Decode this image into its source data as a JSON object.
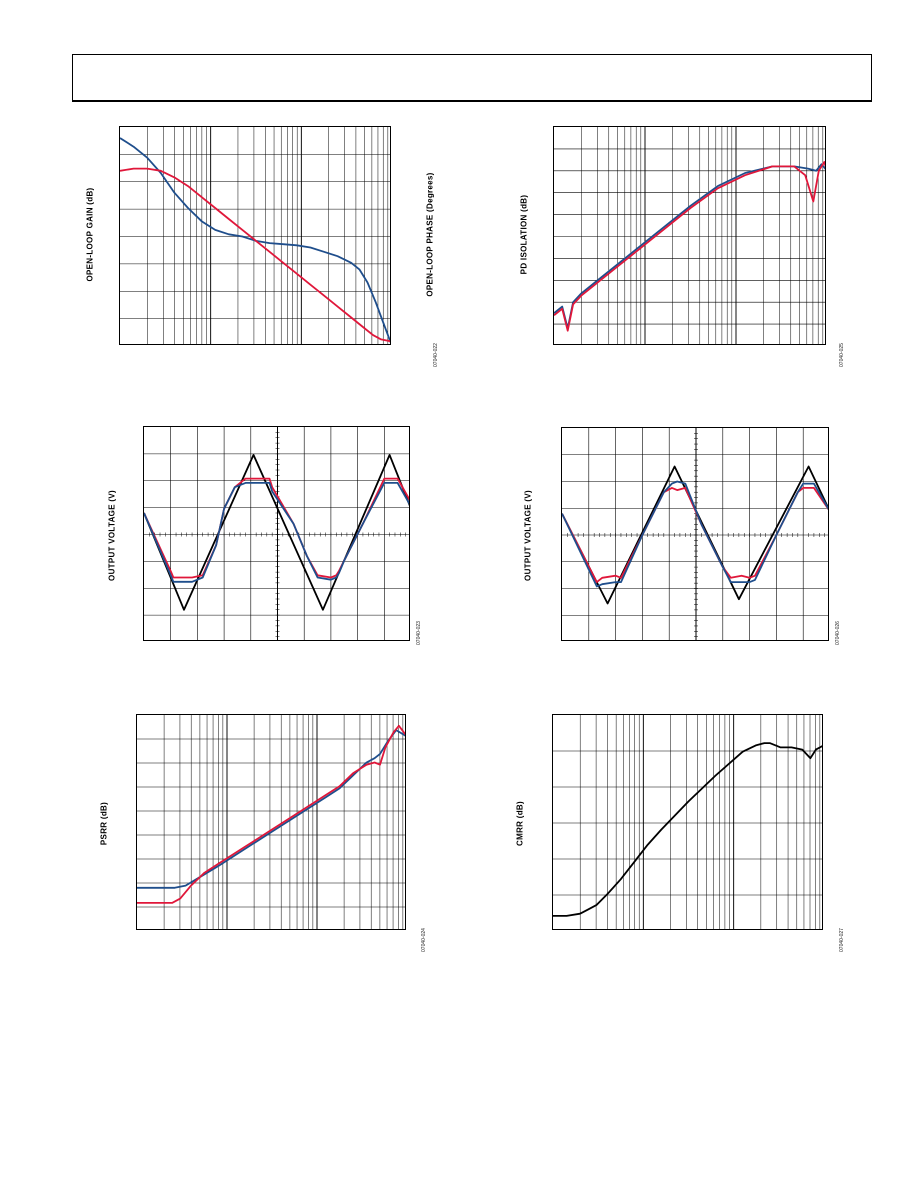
{
  "colors": {
    "blue": "#1f4e8c",
    "red": "#e0173a",
    "black": "#000000",
    "grid": "#000000"
  },
  "charts": {
    "c1": {
      "ylabel": "OPEN-LOOP GAIN (dB)",
      "y2label": "OPEN-LOOP PHASE (Degrees)",
      "fig_id": "07040-022"
    },
    "c2": {
      "ylabel": "PD ISOLATION (dB)",
      "fig_id": "07040-025"
    },
    "c3": {
      "ylabel": "OUTPUT VOLTAGE (V)",
      "fig_id": "07040-023"
    },
    "c4": {
      "ylabel": "OUTPUT VOLTAGE (V)",
      "fig_id": "07040-026"
    },
    "c5": {
      "ylabel": "PSRR (dB)",
      "fig_id": "07040-024"
    },
    "c6": {
      "ylabel": "CMRR (dB)",
      "fig_id": "07040-027"
    }
  },
  "chart_data": [
    {
      "type": "line",
      "ylabel": "OPEN-LOOP GAIN (dB)",
      "y2label": "OPEN-LOOP PHASE (Degrees)",
      "xscale": "log",
      "xlim": [
        0,
        1
      ],
      "ylim": [
        0,
        1
      ],
      "series": [
        {
          "color": "blue",
          "x": [
            0,
            0.05,
            0.1,
            0.15,
            0.2,
            0.25,
            0.3,
            0.35,
            0.4,
            0.45,
            0.5,
            0.55,
            0.6,
            0.65,
            0.7,
            0.75,
            0.8,
            0.85,
            0.88,
            0.91,
            0.94,
            0.97,
            1.0
          ],
          "y": [
            0.95,
            0.91,
            0.86,
            0.79,
            0.7,
            0.63,
            0.57,
            0.53,
            0.51,
            0.5,
            0.48,
            0.47,
            0.465,
            0.46,
            0.45,
            0.43,
            0.41,
            0.38,
            0.35,
            0.29,
            0.2,
            0.1,
            0.0
          ]
        },
        {
          "color": "red",
          "x": [
            0,
            0.05,
            0.1,
            0.15,
            0.2,
            0.25,
            0.3,
            0.35,
            0.4,
            0.45,
            0.5,
            0.55,
            0.6,
            0.65,
            0.7,
            0.75,
            0.8,
            0.85,
            0.9,
            0.93,
            0.96,
            1.0
          ],
          "y": [
            0.8,
            0.81,
            0.81,
            0.8,
            0.77,
            0.73,
            0.68,
            0.63,
            0.58,
            0.53,
            0.48,
            0.43,
            0.38,
            0.33,
            0.28,
            0.23,
            0.18,
            0.13,
            0.08,
            0.05,
            0.03,
            0.02
          ]
        }
      ]
    },
    {
      "type": "line",
      "ylabel": "PD ISOLATION (dB)",
      "xscale": "log",
      "xlim": [
        0,
        1
      ],
      "ylim": [
        0,
        1
      ],
      "series": [
        {
          "color": "blue",
          "x": [
            0,
            0.03,
            0.05,
            0.07,
            0.1,
            0.15,
            0.2,
            0.3,
            0.4,
            0.5,
            0.6,
            0.7,
            0.8,
            0.88,
            0.93,
            0.96,
            0.98,
            1.0
          ],
          "y": [
            0.15,
            0.18,
            0.08,
            0.2,
            0.24,
            0.29,
            0.34,
            0.44,
            0.54,
            0.64,
            0.73,
            0.79,
            0.82,
            0.82,
            0.81,
            0.8,
            0.83,
            0.8
          ]
        },
        {
          "color": "red",
          "x": [
            0,
            0.03,
            0.05,
            0.07,
            0.1,
            0.15,
            0.2,
            0.3,
            0.4,
            0.5,
            0.6,
            0.7,
            0.8,
            0.88,
            0.92,
            0.95,
            0.97,
            0.99,
            1.0
          ],
          "y": [
            0.14,
            0.17,
            0.07,
            0.19,
            0.23,
            0.28,
            0.33,
            0.43,
            0.53,
            0.63,
            0.72,
            0.78,
            0.82,
            0.82,
            0.78,
            0.66,
            0.8,
            0.84,
            0.8
          ]
        }
      ]
    },
    {
      "type": "line",
      "ylabel": "OUTPUT VOLTAGE (V)",
      "xlim": [
        0,
        1
      ],
      "ylim": [
        0,
        1
      ],
      "series": [
        {
          "color": "black",
          "x": [
            0,
            0.15,
            0.41,
            0.67,
            0.92,
            1.0
          ],
          "y": [
            0.6,
            0.15,
            0.87,
            0.15,
            0.87,
            0.62
          ]
        },
        {
          "color": "red",
          "x": [
            0,
            0.1,
            0.11,
            0.18,
            0.22,
            0.27,
            0.3,
            0.34,
            0.38,
            0.47,
            0.48,
            0.56,
            0.61,
            0.65,
            0.7,
            0.72,
            0.73,
            0.75,
            0.82,
            0.9,
            0.95,
            1.0
          ],
          "y": [
            0.6,
            0.33,
            0.3,
            0.3,
            0.31,
            0.45,
            0.62,
            0.72,
            0.76,
            0.76,
            0.72,
            0.55,
            0.4,
            0.31,
            0.3,
            0.31,
            0.33,
            0.38,
            0.55,
            0.76,
            0.76,
            0.65
          ]
        },
        {
          "color": "blue",
          "x": [
            0,
            0.1,
            0.11,
            0.18,
            0.22,
            0.27,
            0.3,
            0.34,
            0.38,
            0.47,
            0.48,
            0.56,
            0.61,
            0.65,
            0.7,
            0.72,
            0.73,
            0.75,
            0.82,
            0.9,
            0.95,
            1.0
          ],
          "y": [
            0.6,
            0.31,
            0.28,
            0.28,
            0.3,
            0.45,
            0.62,
            0.72,
            0.74,
            0.74,
            0.7,
            0.55,
            0.4,
            0.3,
            0.29,
            0.3,
            0.32,
            0.38,
            0.55,
            0.74,
            0.74,
            0.63
          ]
        }
      ]
    },
    {
      "type": "line",
      "ylabel": "OUTPUT VOLTAGE (V)",
      "xlim": [
        0,
        1
      ],
      "ylim": [
        0,
        1
      ],
      "series": [
        {
          "color": "black",
          "x": [
            0,
            0.17,
            0.42,
            0.66,
            0.92,
            1.0
          ],
          "y": [
            0.6,
            0.18,
            0.82,
            0.2,
            0.82,
            0.61
          ]
        },
        {
          "color": "red",
          "x": [
            0,
            0.13,
            0.15,
            0.2,
            0.22,
            0.3,
            0.38,
            0.41,
            0.43,
            0.46,
            0.52,
            0.6,
            0.63,
            0.67,
            0.7,
            0.72,
            0.8,
            0.88,
            0.9,
            0.94,
            1.0
          ],
          "y": [
            0.6,
            0.28,
            0.3,
            0.31,
            0.3,
            0.5,
            0.7,
            0.72,
            0.71,
            0.72,
            0.55,
            0.35,
            0.3,
            0.31,
            0.3,
            0.31,
            0.5,
            0.7,
            0.72,
            0.72,
            0.61
          ]
        },
        {
          "color": "blue",
          "x": [
            0,
            0.13,
            0.15,
            0.2,
            0.22,
            0.3,
            0.38,
            0.41,
            0.43,
            0.46,
            0.52,
            0.6,
            0.63,
            0.67,
            0.7,
            0.72,
            0.8,
            0.88,
            0.9,
            0.94,
            1.0
          ],
          "y": [
            0.6,
            0.26,
            0.27,
            0.28,
            0.28,
            0.5,
            0.7,
            0.74,
            0.75,
            0.74,
            0.55,
            0.35,
            0.28,
            0.28,
            0.28,
            0.29,
            0.5,
            0.7,
            0.74,
            0.74,
            0.61
          ]
        }
      ]
    },
    {
      "type": "line",
      "ylabel": "PSRR (dB)",
      "xscale": "log",
      "xlim": [
        0,
        1
      ],
      "ylim": [
        0,
        1
      ],
      "series": [
        {
          "color": "blue",
          "x": [
            0,
            0.1,
            0.14,
            0.18,
            0.22,
            0.3,
            0.4,
            0.5,
            0.6,
            0.7,
            0.75,
            0.8,
            0.85,
            0.88,
            0.9,
            0.93,
            0.96,
            1.0
          ],
          "y": [
            0.2,
            0.2,
            0.2,
            0.21,
            0.24,
            0.3,
            0.38,
            0.46,
            0.54,
            0.62,
            0.66,
            0.72,
            0.78,
            0.8,
            0.82,
            0.88,
            0.93,
            0.9
          ]
        },
        {
          "color": "red",
          "x": [
            0,
            0.1,
            0.13,
            0.16,
            0.2,
            0.25,
            0.3,
            0.4,
            0.5,
            0.6,
            0.7,
            0.75,
            0.8,
            0.85,
            0.88,
            0.9,
            0.92,
            0.95,
            0.97,
            1.0
          ],
          "y": [
            0.13,
            0.13,
            0.13,
            0.15,
            0.21,
            0.27,
            0.31,
            0.39,
            0.47,
            0.55,
            0.63,
            0.67,
            0.73,
            0.77,
            0.78,
            0.77,
            0.85,
            0.92,
            0.95,
            0.9
          ]
        }
      ]
    },
    {
      "type": "line",
      "ylabel": "CMRR (dB)",
      "xscale": "log",
      "xlim": [
        0,
        1
      ],
      "ylim": [
        0,
        1
      ],
      "series": [
        {
          "color": "black",
          "x": [
            0,
            0.05,
            0.1,
            0.13,
            0.16,
            0.2,
            0.25,
            0.3,
            0.35,
            0.4,
            0.5,
            0.6,
            0.7,
            0.75,
            0.78,
            0.8,
            0.84,
            0.88,
            0.92,
            0.95,
            0.97,
            1.0
          ],
          "y": [
            0.07,
            0.07,
            0.08,
            0.1,
            0.12,
            0.17,
            0.24,
            0.32,
            0.4,
            0.47,
            0.6,
            0.72,
            0.83,
            0.86,
            0.87,
            0.87,
            0.85,
            0.85,
            0.84,
            0.8,
            0.84,
            0.86
          ]
        }
      ]
    }
  ]
}
